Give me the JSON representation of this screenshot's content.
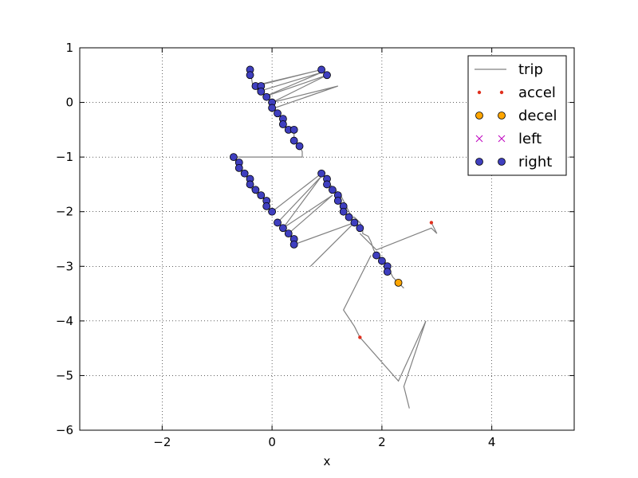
{
  "chart_data": {
    "type": "scatter",
    "xlabel": "x",
    "ylabel": "",
    "xlim": [
      -3.5,
      5.5
    ],
    "ylim": [
      -6,
      1
    ],
    "xticks": [
      -2,
      0,
      2,
      4
    ],
    "yticks": [
      1,
      0,
      -1,
      -2,
      -3,
      -4,
      -5,
      -6
    ],
    "xtick_labels": [
      "−2",
      "0",
      "2",
      "4"
    ],
    "ytick_labels": [
      "1",
      "0",
      "−1",
      "−2",
      "−3",
      "−4",
      "−5",
      "−6"
    ],
    "grid": true,
    "legend_position": "top-right",
    "series": [
      {
        "name": "trip",
        "kind": "line",
        "color": "#808080",
        "segments": [
          [
            [
              -0.4,
              0.6
            ],
            [
              -0.35,
              0.3
            ],
            [
              0.9,
              0.6
            ],
            [
              -0.3,
              0.3
            ],
            [
              -0.25,
              0.2
            ],
            [
              0.9,
              0.55
            ],
            [
              -0.15,
              0.1
            ],
            [
              1.0,
              0.5
            ],
            [
              0.0,
              0.0
            ],
            [
              1.2,
              0.3
            ],
            [
              0.05,
              -0.1
            ],
            [
              0.1,
              -0.2
            ],
            [
              0.2,
              -0.3
            ],
            [
              0.2,
              -0.4
            ],
            [
              0.3,
              -0.5
            ],
            [
              0.4,
              -0.5
            ],
            [
              0.4,
              -0.7
            ],
            [
              0.5,
              -0.8
            ],
            [
              0.55,
              -0.9
            ],
            [
              0.55,
              -1.0
            ],
            [
              -0.7,
              -1.0
            ],
            [
              -0.65,
              -1.1
            ],
            [
              -0.6,
              -1.2
            ],
            [
              -0.5,
              -1.3
            ],
            [
              -0.45,
              -1.4
            ],
            [
              -0.45,
              -1.5
            ],
            [
              -0.35,
              -1.6
            ],
            [
              -0.25,
              -1.7
            ],
            [
              -0.1,
              -1.8
            ],
            [
              -0.1,
              -1.9
            ],
            [
              0.0,
              -2.0
            ],
            [
              0.9,
              -1.3
            ],
            [
              1.0,
              -1.4
            ],
            [
              1.05,
              -1.5
            ],
            [
              1.15,
              -1.6
            ],
            [
              1.25,
              -1.7
            ],
            [
              1.3,
              -1.8
            ],
            [
              1.35,
              -1.9
            ],
            [
              1.4,
              -2.0
            ],
            [
              1.45,
              -2.1
            ],
            [
              1.5,
              -2.1
            ],
            [
              1.6,
              -2.2
            ],
            [
              1.65,
              -2.3
            ],
            [
              1.65,
              -2.4
            ],
            [
              1.75,
              -2.45
            ],
            [
              1.8,
              -2.55
            ],
            [
              1.85,
              -2.7
            ],
            [
              1.9,
              -2.8
            ],
            [
              2.0,
              -2.85
            ],
            [
              2.05,
              -2.9
            ],
            [
              2.1,
              -3.0
            ],
            [
              2.2,
              -3.2
            ],
            [
              2.3,
              -3.3
            ],
            [
              2.4,
              -3.4
            ]
          ],
          [
            [
              0.1,
              -2.2
            ],
            [
              0.9,
              -1.35
            ],
            [
              0.2,
              -2.3
            ],
            [
              1.1,
              -1.7
            ],
            [
              0.3,
              -2.4
            ],
            [
              0.4,
              -2.5
            ],
            [
              0.4,
              -2.6
            ],
            [
              1.5,
              -2.2
            ],
            [
              0.7,
              -3.0
            ]
          ],
          [
            [
              1.6,
              -2.4
            ],
            [
              1.9,
              -2.7
            ],
            [
              2.9,
              -2.3
            ],
            [
              3.0,
              -2.4
            ],
            [
              2.9,
              -2.2
            ]
          ],
          [
            [
              1.8,
              -2.8
            ],
            [
              1.3,
              -3.8
            ],
            [
              1.5,
              -4.1
            ],
            [
              1.6,
              -4.3
            ],
            [
              2.3,
              -5.1
            ],
            [
              2.8,
              -4.0
            ],
            [
              2.4,
              -5.2
            ],
            [
              2.5,
              -5.6
            ]
          ]
        ]
      },
      {
        "name": "accel",
        "kind": "points",
        "color": "#e0301e",
        "points": [
          [
            2.9,
            -2.2
          ],
          [
            1.6,
            -4.3
          ]
        ]
      },
      {
        "name": "decel",
        "kind": "points",
        "color": "#ffa500",
        "points": [
          [
            2.3,
            -3.3
          ]
        ]
      },
      {
        "name": "left",
        "kind": "points",
        "color": "#bf00bf",
        "points": []
      },
      {
        "name": "right",
        "kind": "points",
        "color": "#3f3fbf",
        "points": [
          [
            -0.4,
            0.6
          ],
          [
            -0.4,
            0.5
          ],
          [
            -0.3,
            0.3
          ],
          [
            -0.2,
            0.3
          ],
          [
            -0.2,
            0.2
          ],
          [
            -0.1,
            0.1
          ],
          [
            0.0,
            0.0
          ],
          [
            0.0,
            -0.1
          ],
          [
            0.1,
            -0.2
          ],
          [
            0.2,
            -0.3
          ],
          [
            0.2,
            -0.4
          ],
          [
            0.3,
            -0.5
          ],
          [
            0.4,
            -0.5
          ],
          [
            0.4,
            -0.7
          ],
          [
            0.5,
            -0.8
          ],
          [
            0.9,
            0.6
          ],
          [
            1.0,
            0.5
          ],
          [
            -0.7,
            -1.0
          ],
          [
            -0.6,
            -1.1
          ],
          [
            -0.6,
            -1.2
          ],
          [
            -0.5,
            -1.3
          ],
          [
            -0.4,
            -1.4
          ],
          [
            -0.4,
            -1.5
          ],
          [
            -0.3,
            -1.6
          ],
          [
            -0.2,
            -1.7
          ],
          [
            -0.1,
            -1.8
          ],
          [
            -0.1,
            -1.9
          ],
          [
            0.0,
            -2.0
          ],
          [
            0.1,
            -2.2
          ],
          [
            0.2,
            -2.3
          ],
          [
            0.3,
            -2.4
          ],
          [
            0.4,
            -2.5
          ],
          [
            0.4,
            -2.6
          ],
          [
            0.9,
            -1.3
          ],
          [
            1.0,
            -1.4
          ],
          [
            1.0,
            -1.5
          ],
          [
            1.1,
            -1.6
          ],
          [
            1.2,
            -1.7
          ],
          [
            1.2,
            -1.8
          ],
          [
            1.3,
            -1.9
          ],
          [
            1.3,
            -2.0
          ],
          [
            1.4,
            -2.1
          ],
          [
            1.5,
            -2.2
          ],
          [
            1.6,
            -2.3
          ],
          [
            1.9,
            -2.8
          ],
          [
            2.0,
            -2.9
          ],
          [
            2.1,
            -3.0
          ],
          [
            2.1,
            -3.1
          ]
        ]
      }
    ]
  }
}
